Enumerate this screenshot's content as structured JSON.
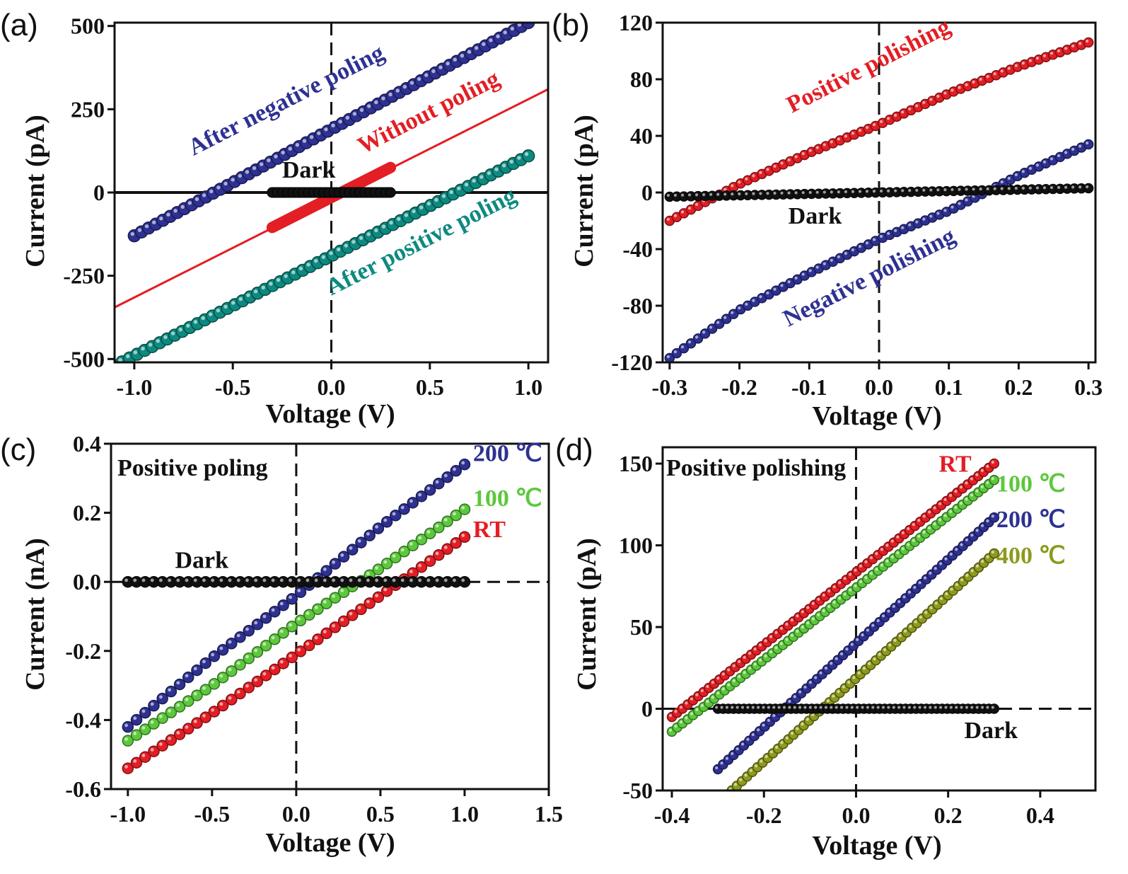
{
  "figure": {
    "width": 1595,
    "height": 1235
  },
  "chart_data": [
    {
      "panel": "(a)",
      "type": "scatter",
      "xlabel": "Voltage (V)",
      "ylabel": "Current (pA)",
      "xlim": [
        -1.1,
        1.1
      ],
      "ylim": [
        -510,
        510
      ],
      "xticks": [
        -1.0,
        -0.5,
        0.0,
        0.5,
        1.0
      ],
      "xtick_labels": [
        "-1.0",
        "-0.5",
        "0.0",
        "0.5",
        "1.0"
      ],
      "yticks": [
        -500,
        -250,
        0,
        250,
        500
      ],
      "ytick_labels": [
        "-500",
        "-250",
        "0",
        "250",
        "500"
      ],
      "zero_lines": {
        "vertical": "dashed",
        "horizontal": "solid"
      },
      "series": [
        {
          "name": "After negative poling",
          "color": "#2e3192",
          "kind": "markers",
          "x": [
            -1.0,
            1.0
          ],
          "y": [
            -130,
            510
          ],
          "n": 56,
          "r": 8.5,
          "label_at": [
            -0.7,
            110
          ],
          "label_rot": -27
        },
        {
          "name": "Without poling",
          "color": "#e31e24",
          "kind": "fitline",
          "x": [
            -1.1,
            1.1
          ],
          "y": [
            -345,
            310
          ],
          "label_at": [
            0.16,
            115
          ],
          "label_rot": -27
        },
        {
          "name": "",
          "color": "#e31e24",
          "kind": "thick",
          "x": [
            -0.3,
            0.3
          ],
          "y": [
            -105,
            75
          ],
          "w": 16
        },
        {
          "name": "After positive poling",
          "color": "#0d8a80",
          "kind": "markers",
          "x": [
            -1.1,
            1.0
          ],
          "y": [
            -520,
            110
          ],
          "n": 56,
          "r": 8.5,
          "label_at": [
            0.0,
            -310
          ],
          "label_rot": -27
        },
        {
          "name": "Dark",
          "color": "#111111",
          "kind": "thickdark",
          "x": [
            -0.3,
            0.3
          ],
          "y": [
            0,
            0
          ],
          "label_at": [
            -0.25,
            45
          ]
        }
      ],
      "annotations": [
        "After negative poling",
        "Without poling",
        "After positive poling",
        "Dark"
      ]
    },
    {
      "panel": "(b)",
      "type": "scatter",
      "xlabel": "Voltage (V)",
      "ylabel": "Current (pA)",
      "xlim": [
        -0.31,
        0.31
      ],
      "ylim": [
        -120,
        120
      ],
      "xticks": [
        -0.3,
        -0.2,
        -0.1,
        0.0,
        0.1,
        0.2,
        0.3
      ],
      "xtick_labels": [
        "-0.3",
        "-0.2",
        "-0.1",
        "0.0",
        "0.1",
        "0.2",
        "0.3"
      ],
      "yticks": [
        -120,
        -80,
        -40,
        0,
        40,
        80,
        120
      ],
      "ytick_labels": [
        "-120",
        "-80",
        "-40",
        "0",
        "40",
        "80",
        "120"
      ],
      "zero_lines": {
        "vertical": "dashed",
        "horizontal": "none"
      },
      "series": [
        {
          "name": "Positive polishing",
          "color": "#e31e24",
          "kind": "markers",
          "x": [
            -0.3,
            -0.2,
            -0.1,
            0.0,
            0.1,
            0.2,
            0.3
          ],
          "y": [
            -20,
            6,
            28,
            48,
            70,
            89,
            106
          ],
          "n": 60,
          "r": 6.5,
          "label_at": [
            -0.125,
            56
          ],
          "label_rot": -27
        },
        {
          "name": "Negative polishing",
          "color": "#2e3192",
          "kind": "markers",
          "x": [
            -0.3,
            -0.2,
            -0.1,
            0.0,
            0.1,
            0.2,
            0.3
          ],
          "y": [
            -117,
            -83,
            -57,
            -33,
            -13,
            12,
            34
          ],
          "n": 60,
          "r": 6.5,
          "label_at": [
            -0.13,
            -95
          ],
          "label_rot": -27
        },
        {
          "name": "Dark",
          "color": "#111111",
          "kind": "markers",
          "x": [
            -0.3,
            0.3
          ],
          "y": [
            -3,
            3
          ],
          "n": 60,
          "r": 6.5,
          "label_at": [
            -0.13,
            -22
          ]
        }
      ],
      "annotations": [
        "Positive polishing",
        "Negative polishing",
        "Dark"
      ]
    },
    {
      "panel": "(c)",
      "type": "scatter",
      "xlabel": "Voltage (V)",
      "ylabel": "Current (nA)",
      "xlim": [
        -1.1,
        1.5
      ],
      "ylim": [
        -0.6,
        0.4
      ],
      "xticks": [
        -1.0,
        -0.5,
        0.0,
        0.5,
        1.0,
        1.5
      ],
      "xtick_labels": [
        "-1.0",
        "-0.5",
        "0.0",
        "0.5",
        "1.0",
        "1.5"
      ],
      "yticks": [
        -0.6,
        -0.4,
        -0.2,
        0.0,
        0.2,
        0.4
      ],
      "ytick_labels": [
        "-0.6",
        "-0.4",
        "-0.2",
        "0.0",
        "0.2",
        "0.4"
      ],
      "zero_lines": {
        "vertical": "dashed",
        "horizontal": "dashed"
      },
      "title_text": "Positive poling",
      "series": [
        {
          "name": "200 ℃",
          "color": "#2e3192",
          "kind": "markers",
          "x": [
            -1.0,
            -0.5,
            0.0,
            0.5,
            1.0
          ],
          "y": [
            -0.42,
            -0.22,
            -0.04,
            0.16,
            0.34
          ],
          "n": 40,
          "r": 7.5,
          "label_at": [
            1.05,
            0.35
          ]
        },
        {
          "name": "100 ℃",
          "color": "#5cc83c",
          "kind": "markers",
          "x": [
            -1.0,
            -0.5,
            0.0,
            0.5,
            1.0
          ],
          "y": [
            -0.46,
            -0.3,
            -0.12,
            0.04,
            0.21
          ],
          "n": 40,
          "r": 7.5,
          "label_at": [
            1.05,
            0.22
          ]
        },
        {
          "name": "RT",
          "color": "#e31e24",
          "kind": "markers",
          "x": [
            -1.0,
            -0.5,
            0.0,
            0.5,
            1.0
          ],
          "y": [
            -0.54,
            -0.38,
            -0.21,
            -0.04,
            0.13
          ],
          "n": 40,
          "r": 7.5,
          "label_at": [
            1.05,
            0.13
          ]
        },
        {
          "name": "Dark",
          "color": "#111111",
          "kind": "markers",
          "x": [
            -1.0,
            1.0
          ],
          "y": [
            0.0,
            0.0
          ],
          "n": 40,
          "r": 7.5,
          "label_at": [
            -0.72,
            0.04
          ]
        }
      ],
      "annotations": [
        "Positive poling",
        "200 ℃",
        "100 ℃",
        "RT",
        "Dark"
      ]
    },
    {
      "panel": "(d)",
      "type": "scatter",
      "xlabel": "Voltage (V)",
      "ylabel": "Current (pA)",
      "xlim": [
        -0.42,
        0.52
      ],
      "ylim": [
        -50,
        160
      ],
      "xticks": [
        -0.4,
        -0.2,
        0.0,
        0.2,
        0.4
      ],
      "xtick_labels": [
        "-0.4",
        "-0.2",
        "0.0",
        "0.2",
        "0.4"
      ],
      "yticks": [
        -50,
        0,
        50,
        100,
        150
      ],
      "ytick_labels": [
        "-50",
        "0",
        "50",
        "100",
        "150"
      ],
      "zero_lines": {
        "vertical": "dashed",
        "horizontal": "dashed"
      },
      "title_text": "Positive polishing",
      "series": [
        {
          "name": "RT",
          "color": "#e31e24",
          "kind": "markers",
          "x": [
            -0.4,
            0.3
          ],
          "y": [
            -5,
            150
          ],
          "n": 62,
          "r": 6.5,
          "label_at": [
            0.18,
            145
          ]
        },
        {
          "name": "100 ℃",
          "color": "#5cc83c",
          "kind": "markers",
          "x": [
            -0.4,
            0.3
          ],
          "y": [
            -14,
            140
          ],
          "n": 62,
          "r": 6.5,
          "label_at": [
            0.305,
            133
          ]
        },
        {
          "name": "200 ℃",
          "color": "#2e3192",
          "kind": "markers",
          "x": [
            -0.3,
            0.3
          ],
          "y": [
            -37,
            117
          ],
          "n": 54,
          "r": 6.5,
          "label_at": [
            0.305,
            111
          ]
        },
        {
          "name": "400 ℃",
          "color": "#8e9a1c",
          "kind": "markers",
          "x": [
            -0.27,
            0.3
          ],
          "y": [
            -50,
            95
          ],
          "n": 52,
          "r": 6.5,
          "label_at": [
            0.305,
            89
          ]
        },
        {
          "name": "Dark",
          "color": "#111111",
          "kind": "markers",
          "x": [
            -0.3,
            0.3
          ],
          "y": [
            0,
            0
          ],
          "n": 54,
          "r": 6.5,
          "label_at": [
            0.235,
            -18
          ]
        }
      ],
      "annotations": [
        "Positive polishing",
        "RT",
        "100 ℃",
        "200 ℃",
        "400 ℃",
        "Dark"
      ]
    }
  ]
}
